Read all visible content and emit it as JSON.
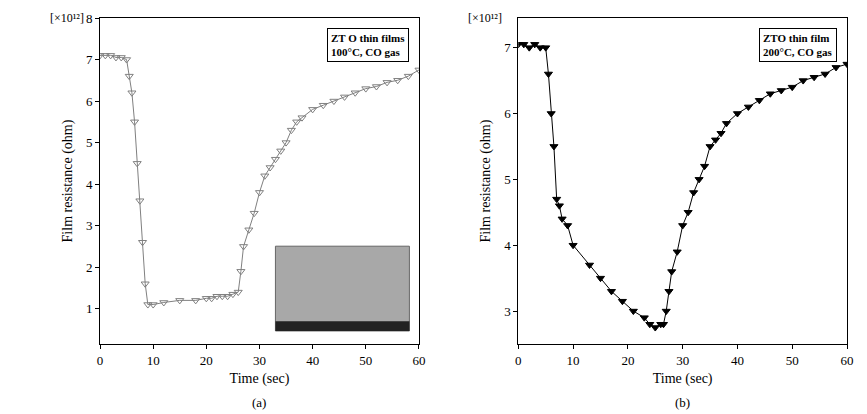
{
  "chart_data": [
    {
      "type": "line",
      "panel": "(a)",
      "xlabel": "Time (sec)",
      "ylabel": "Film resistance (ohm)",
      "multiplier": "[×10¹²]",
      "annotation_lines": [
        "ZT O thin films",
        "100°C, CO gas"
      ],
      "x": [
        0,
        1,
        2,
        3,
        4,
        5,
        5.5,
        6,
        6.5,
        7,
        7.5,
        8,
        8.5,
        9,
        10,
        12,
        15,
        18,
        20,
        21,
        22,
        23,
        24,
        25,
        26,
        26.5,
        27,
        28,
        29,
        30,
        31,
        32,
        33,
        34,
        35,
        36,
        37,
        38,
        40,
        42,
        44,
        46,
        48,
        50,
        52,
        54,
        56,
        58,
        60
      ],
      "series": [
        {
          "color": "#808080",
          "marker": "triangle-down-open",
          "values": [
            7.1,
            7.1,
            7.1,
            7.05,
            7.05,
            7.0,
            6.6,
            6.2,
            5.5,
            4.5,
            3.6,
            2.6,
            1.6,
            1.1,
            1.1,
            1.15,
            1.2,
            1.2,
            1.25,
            1.25,
            1.3,
            1.3,
            1.3,
            1.35,
            1.4,
            1.9,
            2.5,
            2.9,
            3.3,
            3.8,
            4.2,
            4.4,
            4.6,
            4.8,
            5.0,
            5.3,
            5.5,
            5.6,
            5.8,
            5.9,
            6.0,
            6.1,
            6.2,
            6.3,
            6.35,
            6.45,
            6.5,
            6.6,
            6.75
          ]
        }
      ],
      "xlim": [
        0,
        60
      ],
      "xticks": [
        0,
        10,
        20,
        30,
        40,
        50,
        60
      ],
      "ylim": [
        0.15,
        8
      ],
      "yticks": [
        1,
        2,
        3,
        4,
        5,
        6,
        7,
        8
      ]
    },
    {
      "type": "line",
      "panel": "(b)",
      "xlabel": "Time (sec)",
      "ylabel": "Film resistance (ohm)",
      "multiplier": "[×10¹²]",
      "annotation_lines": [
        "ZTO thin film",
        "200°C, CO gas"
      ],
      "x": [
        0,
        1,
        2,
        3,
        4,
        5,
        5.5,
        6,
        6.5,
        7,
        7.5,
        8,
        9,
        10,
        13,
        15,
        17,
        19,
        21,
        23,
        24,
        25,
        26,
        26.5,
        27,
        27.5,
        28,
        29,
        30,
        31,
        32,
        33,
        34,
        35,
        36,
        37,
        38,
        40,
        42,
        44,
        46,
        48,
        50,
        52,
        54,
        56,
        58,
        60
      ],
      "series": [
        {
          "color": "#000000",
          "marker": "triangle-down",
          "values": [
            7.05,
            7.05,
            7.0,
            7.05,
            7.0,
            7.0,
            6.6,
            6.0,
            5.5,
            4.7,
            4.6,
            4.4,
            4.3,
            4.0,
            3.7,
            3.5,
            3.3,
            3.15,
            3.0,
            2.9,
            2.8,
            2.75,
            2.8,
            2.8,
            3.0,
            3.3,
            3.6,
            3.9,
            4.3,
            4.5,
            4.8,
            5.0,
            5.2,
            5.5,
            5.6,
            5.7,
            5.85,
            6.0,
            6.1,
            6.2,
            6.3,
            6.35,
            6.4,
            6.5,
            6.55,
            6.6,
            6.7,
            6.75
          ]
        }
      ],
      "xlim": [
        0,
        60
      ],
      "xticks": [
        0,
        10,
        20,
        30,
        40,
        50,
        60
      ],
      "ylim": [
        2.5,
        7.45
      ],
      "yticks": [
        3,
        4,
        5,
        6,
        7
      ]
    }
  ]
}
